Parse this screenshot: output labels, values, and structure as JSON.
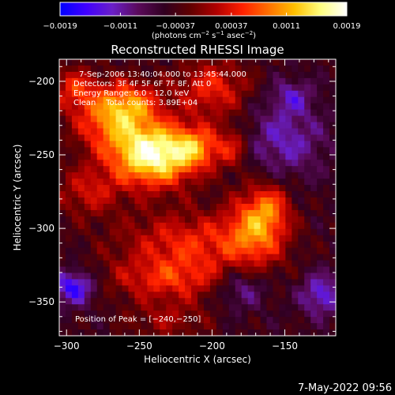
{
  "chart_data": {
    "type": "heatmap",
    "title": "Reconstructed RHESSI Image",
    "xlabel": "Heliocentric X (arcsec)",
    "ylabel": "Heliocentric Y (arcsec)",
    "xlim": [
      -305,
      -115
    ],
    "ylim": [
      -373,
      -185
    ],
    "x_ticks": [
      -300,
      -250,
      -200,
      -150
    ],
    "x_tick_labels": [
      "−300",
      "−250",
      "−200",
      "−150"
    ],
    "y_ticks": [
      -200,
      -250,
      -300,
      -350
    ],
    "y_tick_labels": [
      "−200",
      "−250",
      "−300",
      "−350"
    ],
    "colorbar": {
      "min": -0.0019,
      "max": 0.0019,
      "ticks": [
        -0.0019,
        -0.0011,
        -0.00037,
        0.00037,
        0.0011,
        0.0019
      ],
      "tick_labels": [
        "−0.0019",
        "−0.0011",
        "−0.00037",
        "0.00037",
        "0.0011",
        "0.0019"
      ],
      "unit_label": "(photons cm",
      "unit_exp1": "−2",
      "unit_mid": " s",
      "unit_exp2": "−1",
      "unit_end": " asec",
      "unit_exp3": "−2",
      "unit_close": ")",
      "colormap": [
        "#0000ff",
        "#4000ff",
        "#6a1fc8",
        "#5a0a5a",
        "#300020",
        "#600000",
        "#b00000",
        "#ff2000",
        "#ff7000",
        "#ffc000",
        "#ffff80",
        "#ffffff"
      ]
    },
    "annotations": [
      "7-Sep-2006 13:40:04.000 to 13:45:44.000",
      "Detectors: 3F 4F 5F 6F 7F 8F, Att 0",
      "Energy Range: 6.0 - 12.0 keV",
      "Clean    Total counts: 3.89E+04"
    ],
    "peak_label": "Position of Peak = [−240,−250]",
    "peak": [
      -240,
      -250
    ],
    "sources": [
      {
        "x": -240,
        "y": -250,
        "sx": 20,
        "sy": 15,
        "amp": 0.0022
      },
      {
        "x": -210,
        "y": -245,
        "sx": 12,
        "sy": 10,
        "amp": 0.001
      },
      {
        "x": -270,
        "y": -225,
        "sx": 18,
        "sy": 16,
        "amp": 0.0012
      },
      {
        "x": -255,
        "y": -215,
        "sx": 14,
        "sy": 10,
        "amp": 0.0008
      },
      {
        "x": -295,
        "y": -205,
        "sx": 10,
        "sy": 10,
        "amp": 0.0008
      },
      {
        "x": -200,
        "y": -205,
        "sx": 18,
        "sy": 14,
        "amp": 0.0009
      },
      {
        "x": -185,
        "y": -245,
        "sx": 8,
        "sy": 10,
        "amp": 0.0007
      },
      {
        "x": -170,
        "y": -300,
        "sx": 14,
        "sy": 18,
        "amp": 0.0011
      },
      {
        "x": -160,
        "y": -285,
        "sx": 10,
        "sy": 12,
        "amp": 0.0007
      },
      {
        "x": -215,
        "y": -310,
        "sx": 35,
        "sy": 15,
        "amp": 0.0009
      },
      {
        "x": -230,
        "y": -335,
        "sx": 30,
        "sy": 10,
        "amp": 0.0008
      },
      {
        "x": -285,
        "y": -275,
        "sx": 16,
        "sy": 12,
        "amp": 0.0007
      },
      {
        "x": -230,
        "y": -362,
        "sx": 20,
        "sy": 10,
        "amp": 0.0005
      },
      {
        "x": -295,
        "y": -340,
        "sx": 10,
        "sy": 8,
        "amp": -0.0012
      },
      {
        "x": -180,
        "y": -340,
        "sx": 12,
        "sy": 10,
        "amp": -0.0007
      },
      {
        "x": -125,
        "y": -345,
        "sx": 10,
        "sy": 10,
        "amp": -0.0009
      },
      {
        "x": -150,
        "y": -240,
        "sx": 20,
        "sy": 18,
        "amp": -0.0007
      },
      {
        "x": -145,
        "y": -210,
        "sx": 10,
        "sy": 8,
        "amp": -0.0006
      }
    ]
  },
  "footer_date": "7-May-2022 09:56"
}
